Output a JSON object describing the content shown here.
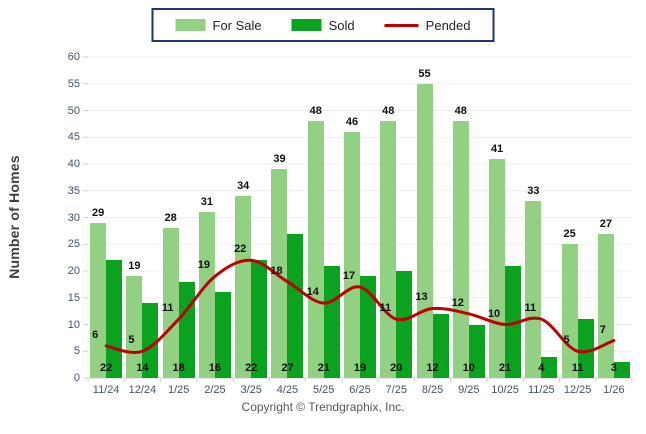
{
  "legend": {
    "for_sale_label": "For Sale",
    "sold_label": "Sold",
    "pended_label": "Pended"
  },
  "y_axis": {
    "title": "Number of Homes"
  },
  "footer": {
    "copyright": "Copyright © Trendgraphix, Inc."
  },
  "colors": {
    "for_sale": "#92d183",
    "sold": "#0aa21e",
    "pended": "#c00000",
    "legend_border": "#1f3864",
    "grid": "#ececec",
    "axis_line": "#cfcfcf",
    "tick_text": "#44546a",
    "value_text": "#111111"
  },
  "chart_data": {
    "type": "bar",
    "title": "",
    "categories": [
      "11/24",
      "12/24",
      "1/25",
      "2/25",
      "3/25",
      "4/25",
      "5/25",
      "6/25",
      "7/25",
      "8/25",
      "9/25",
      "10/25",
      "11/25",
      "12/25",
      "1/26"
    ],
    "series": [
      {
        "name": "For Sale",
        "type": "bar",
        "color": "#92d183",
        "values": [
          29,
          19,
          28,
          31,
          34,
          39,
          48,
          46,
          48,
          55,
          48,
          41,
          33,
          25,
          27
        ]
      },
      {
        "name": "Sold",
        "type": "bar",
        "color": "#0aa21e",
        "values": [
          22,
          14,
          18,
          16,
          22,
          27,
          21,
          19,
          20,
          12,
          10,
          21,
          4,
          11,
          3
        ]
      },
      {
        "name": "Pended",
        "type": "line",
        "color": "#c00000",
        "values": [
          6,
          5,
          11,
          19,
          22,
          18,
          14,
          17,
          11,
          13,
          12,
          10,
          11,
          5,
          7
        ]
      }
    ],
    "xlabel": "",
    "ylabel": "Number of Homes",
    "ylim": [
      0,
      60
    ],
    "ytick_step": 5,
    "grid": "horizontal",
    "legend_position": "top-center",
    "value_labels": "all points labeled"
  }
}
